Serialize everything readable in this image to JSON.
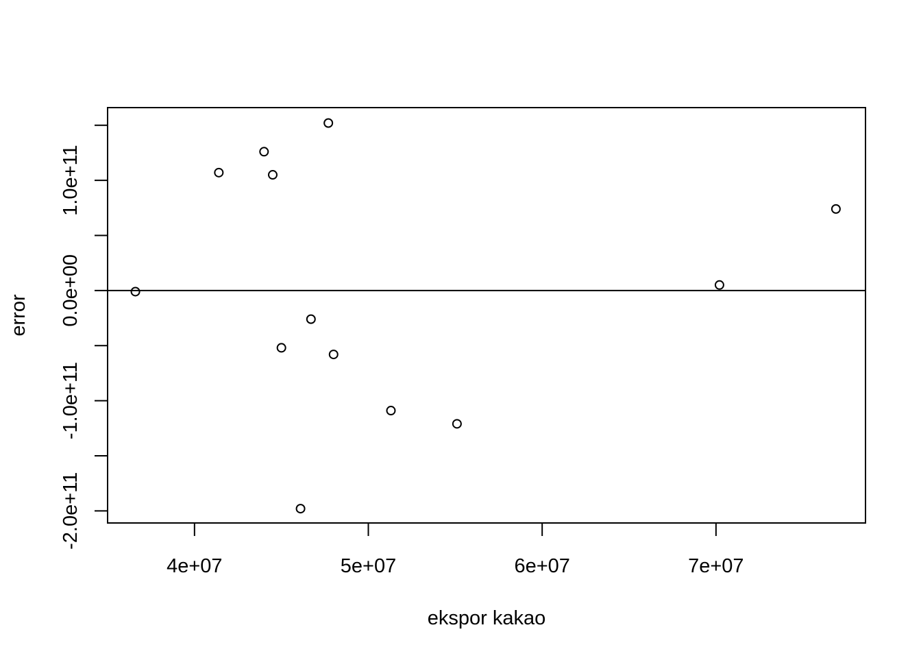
{
  "chart_data": {
    "type": "scatter",
    "title": "",
    "xlabel": "ekspor kakao",
    "ylabel": "error",
    "xlim": [
      35000000,
      78600000
    ],
    "ylim": [
      -211000000000,
      166000000000
    ],
    "x_ticks": [
      {
        "value": 40000000,
        "label": "4e+07"
      },
      {
        "value": 50000000,
        "label": "5e+07"
      },
      {
        "value": 60000000,
        "label": "6e+07"
      },
      {
        "value": 70000000,
        "label": "7e+07"
      }
    ],
    "y_ticks": [
      {
        "value": -200000000000,
        "label": "-2.0e+11"
      },
      {
        "value": -150000000000,
        "label": ""
      },
      {
        "value": -100000000000,
        "label": "-1.0e+11"
      },
      {
        "value": -50000000000,
        "label": ""
      },
      {
        "value": 0,
        "label": "0.0e+00"
      },
      {
        "value": 50000000000,
        "label": ""
      },
      {
        "value": 100000000000,
        "label": "1.0e+11"
      },
      {
        "value": 150000000000,
        "label": ""
      }
    ],
    "reference_line": {
      "y": 0
    },
    "points": [
      {
        "x": 36600000,
        "y": -1000000000
      },
      {
        "x": 41400000,
        "y": 107000000000
      },
      {
        "x": 44000000,
        "y": 126000000000
      },
      {
        "x": 44500000,
        "y": 105000000000
      },
      {
        "x": 45000000,
        "y": -52000000000
      },
      {
        "x": 46100000,
        "y": -198000000000
      },
      {
        "x": 46700000,
        "y": -26000000000
      },
      {
        "x": 47700000,
        "y": 152000000000
      },
      {
        "x": 48000000,
        "y": -58000000000
      },
      {
        "x": 51300000,
        "y": -109000000000
      },
      {
        "x": 55100000,
        "y": -121000000000
      },
      {
        "x": 70200000,
        "y": 5000000000
      },
      {
        "x": 76900000,
        "y": 74000000000
      }
    ],
    "grid": false,
    "legend": "none",
    "colors": {
      "marker": "#000000",
      "axis": "#000000",
      "background": "#ffffff"
    }
  }
}
